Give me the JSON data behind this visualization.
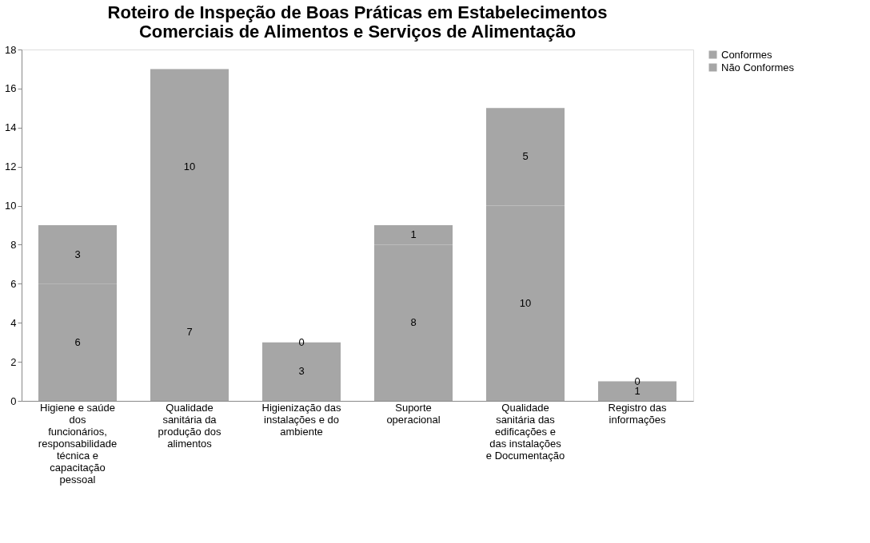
{
  "chart_data": {
    "type": "bar",
    "title": "Roteiro de Inspeção de Boas Práticas em Estabelecimentos Comerciais de Alimentos e Serviços de Alimentação",
    "categories": [
      "Higiene e saúde dos funcionários, responsabilidade técnica e capacitação pessoal",
      "Qualidade sanitária da produção dos alimentos",
      "Higienização das instalações e do ambiente",
      "Suporte operacional",
      "Qualidade sanitária das edificações e das instalações e Documentação",
      "Registro das informações"
    ],
    "series": [
      {
        "name": "Conformes",
        "color": "#a6a6a6",
        "values": [
          6,
          7,
          3,
          8,
          10,
          1
        ]
      },
      {
        "name": "Não Conformes",
        "color": "#a6a6a6",
        "values": [
          3,
          10,
          0,
          1,
          5,
          0
        ]
      }
    ],
    "stacked": true,
    "data_labels": true,
    "ylim": [
      0,
      18
    ],
    "yticks": [
      0,
      2,
      4,
      6,
      8,
      10,
      12,
      14,
      16,
      18
    ],
    "grid": false,
    "legend": "right"
  }
}
